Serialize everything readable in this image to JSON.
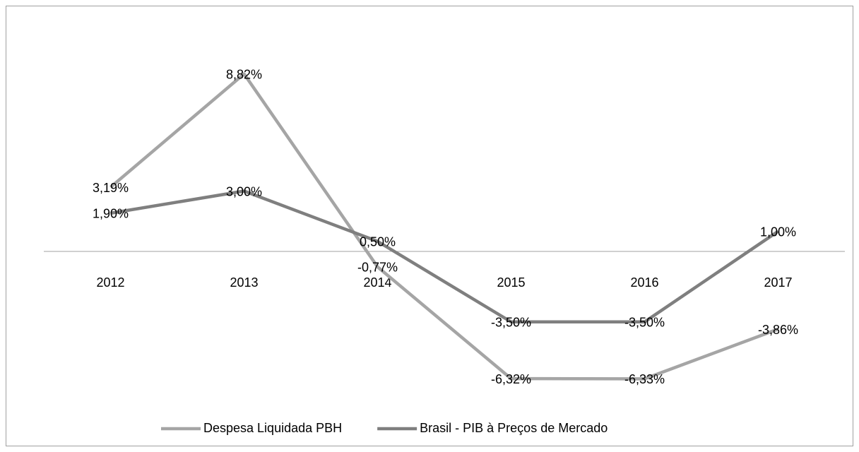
{
  "chart_data": {
    "type": "line",
    "categories": [
      "2012",
      "2013",
      "2014",
      "2015",
      "2016",
      "2017"
    ],
    "series": [
      {
        "name": "Despesa Liquidada PBH",
        "color": "#a5a5a5",
        "values": [
          3.19,
          8.82,
          -0.77,
          -6.32,
          -6.33,
          -3.86
        ],
        "value_labels": [
          "3,19%",
          "8,82%",
          "-0,77%",
          "-6,32%",
          "-6,33%",
          "-3,86%"
        ]
      },
      {
        "name": "Brasil - PIB à Preços de Mercado",
        "color": "#7f7f7f",
        "values": [
          1.9,
          3.0,
          0.5,
          -3.5,
          -3.5,
          1.0
        ],
        "value_labels": [
          "1,90%",
          "3,00%",
          "0,50%",
          "-3,50%",
          "-3,50%",
          "1,00%"
        ]
      }
    ],
    "ylim": [
      -8,
      10
    ],
    "legend": "bottom"
  }
}
